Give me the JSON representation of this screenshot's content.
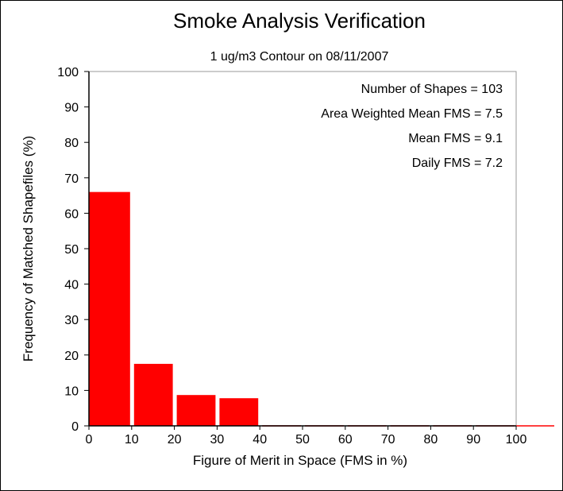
{
  "chart_data": {
    "type": "bar",
    "title": "Smoke Analysis Verification",
    "subtitle": "1 ug/m3 Contour on 08/11/2007",
    "xlabel": "Figure of Merit in Space (FMS in %)",
    "ylabel": "Frequency of Matched Shapefiles (%)",
    "xlim": [
      0,
      100
    ],
    "ylim": [
      0,
      100
    ],
    "x_ticks": [
      0,
      10,
      20,
      30,
      40,
      50,
      60,
      70,
      80,
      90,
      100
    ],
    "y_ticks": [
      0,
      10,
      20,
      30,
      40,
      50,
      60,
      70,
      80,
      90,
      100
    ],
    "bins": [
      {
        "from": 0,
        "to": 10,
        "value": 66.0
      },
      {
        "from": 10,
        "to": 20,
        "value": 17.5
      },
      {
        "from": 20,
        "to": 30,
        "value": 8.7
      },
      {
        "from": 30,
        "to": 40,
        "value": 7.8
      },
      {
        "from": 40,
        "to": 50,
        "value": 0
      },
      {
        "from": 50,
        "to": 60,
        "value": 0
      },
      {
        "from": 60,
        "to": 70,
        "value": 0
      },
      {
        "from": 70,
        "to": 80,
        "value": 0
      },
      {
        "from": 80,
        "to": 90,
        "value": 0
      },
      {
        "from": 90,
        "to": 100,
        "value": 0
      }
    ],
    "bar_color": "#ff0000",
    "grid": false,
    "annotations": [
      "Number of Shapes = 103",
      "Area Weighted Mean FMS = 7.5",
      "Mean FMS = 9.1",
      "Daily FMS = 7.2"
    ]
  }
}
